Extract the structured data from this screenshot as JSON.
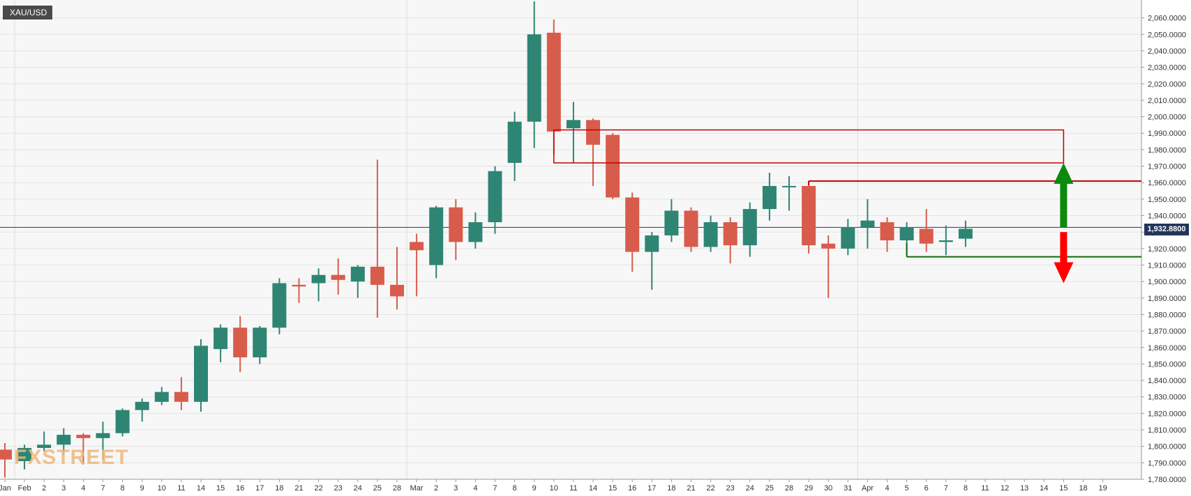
{
  "symbol": "XAU/USD",
  "watermark": "FXSTREET",
  "chart_data": {
    "type": "candlestick",
    "title": "XAU/USD",
    "ylim": [
      1780,
      2070
    ],
    "yticks": [
      1780,
      1790,
      1800,
      1810,
      1820,
      1830,
      1840,
      1850,
      1860,
      1870,
      1880,
      1890,
      1900,
      1910,
      1920,
      1930,
      1940,
      1950,
      1960,
      1970,
      1980,
      1990,
      2000,
      2010,
      2020,
      2030,
      2040,
      2050,
      2060
    ],
    "ytick_labels": [
      "1,780.0000",
      "1,790.0000",
      "1,800.0000",
      "1,810.0000",
      "1,820.0000",
      "1,830.0000",
      "1,840.0000",
      "1,850.0000",
      "1,860.0000",
      "1,870.0000",
      "1,880.0000",
      "1,890.0000",
      "1,900.0000",
      "1,910.0000",
      "1,920.0000",
      "1,930.0000",
      "1,940.0000",
      "1,950.0000",
      "1,960.0000",
      "1,970.0000",
      "1,980.0000",
      "1,990.0000",
      "2,000.0000",
      "2,010.0000",
      "2,020.0000",
      "2,030.0000",
      "2,040.0000",
      "2,050.0000",
      "2,060.0000"
    ],
    "grid": true,
    "candles": [
      {
        "label": "Jan",
        "open": 1798,
        "high": 1802,
        "low": 1781,
        "close": 1792
      },
      {
        "label": "Feb",
        "open": 1791,
        "high": 1801,
        "low": 1786,
        "close": 1799
      },
      {
        "label": "2",
        "open": 1799,
        "high": 1809,
        "low": 1797,
        "close": 1801
      },
      {
        "label": "3",
        "open": 1801,
        "high": 1811,
        "low": 1795,
        "close": 1807
      },
      {
        "label": "4",
        "open": 1807,
        "high": 1808,
        "low": 1789,
        "close": 1805
      },
      {
        "label": "7",
        "open": 1805,
        "high": 1815,
        "low": 1792,
        "close": 1808
      },
      {
        "label": "8",
        "open": 1808,
        "high": 1823,
        "low": 1806,
        "close": 1822
      },
      {
        "label": "9",
        "open": 1822,
        "high": 1829,
        "low": 1815,
        "close": 1827
      },
      {
        "label": "10",
        "open": 1827,
        "high": 1836,
        "low": 1825,
        "close": 1833
      },
      {
        "label": "11",
        "open": 1833,
        "high": 1842,
        "low": 1822,
        "close": 1827
      },
      {
        "label": "14",
        "open": 1827,
        "high": 1865,
        "low": 1821,
        "close": 1861
      },
      {
        "label": "15",
        "open": 1859,
        "high": 1874,
        "low": 1851,
        "close": 1872
      },
      {
        "label": "16",
        "open": 1872,
        "high": 1879,
        "low": 1845,
        "close": 1854
      },
      {
        "label": "17",
        "open": 1854,
        "high": 1873,
        "low": 1850,
        "close": 1872
      },
      {
        "label": "18",
        "open": 1872,
        "high": 1902,
        "low": 1868,
        "close": 1899
      },
      {
        "label": "21",
        "open": 1898,
        "high": 1902,
        "low": 1887,
        "close": 1897
      },
      {
        "label": "22",
        "open": 1899,
        "high": 1908,
        "low": 1888,
        "close": 1904
      },
      {
        "label": "23",
        "open": 1904,
        "high": 1914,
        "low": 1892,
        "close": 1901
      },
      {
        "label": "24",
        "open": 1900,
        "high": 1910,
        "low": 1890,
        "close": 1909
      },
      {
        "label": "25",
        "open": 1909,
        "high": 1974,
        "low": 1878,
        "close": 1898
      },
      {
        "label": "28",
        "open": 1898,
        "high": 1921,
        "low": 1883,
        "close": 1891
      },
      {
        "label": "Mar",
        "open": 1924,
        "high": 1929,
        "low": 1891,
        "close": 1919
      },
      {
        "label": "2",
        "open": 1910,
        "high": 1946,
        "low": 1902,
        "close": 1945
      },
      {
        "label": "3",
        "open": 1945,
        "high": 1950,
        "low": 1913,
        "close": 1924
      },
      {
        "label": "4",
        "open": 1924,
        "high": 1942,
        "low": 1920,
        "close": 1936
      },
      {
        "label": "7",
        "open": 1936,
        "high": 1970,
        "low": 1929,
        "close": 1967
      },
      {
        "label": "8",
        "open": 1972,
        "high": 2003,
        "low": 1961,
        "close": 1997
      },
      {
        "label": "9",
        "open": 1997,
        "high": 2070,
        "low": 1981,
        "close": 2050
      },
      {
        "label": "10",
        "open": 2051,
        "high": 2059,
        "low": 1977,
        "close": 1991
      },
      {
        "label": "11",
        "open": 1993,
        "high": 2009,
        "low": 1972,
        "close": 1998
      },
      {
        "label": "14",
        "open": 1998,
        "high": 1999,
        "low": 1958,
        "close": 1983
      },
      {
        "label": "15",
        "open": 1989,
        "high": 1990,
        "low": 1950,
        "close": 1951
      },
      {
        "label": "16",
        "open": 1951,
        "high": 1954,
        "low": 1906,
        "close": 1918
      },
      {
        "label": "17",
        "open": 1918,
        "high": 1930,
        "low": 1895,
        "close": 1928
      },
      {
        "label": "18",
        "open": 1928,
        "high": 1950,
        "low": 1924,
        "close": 1943
      },
      {
        "label": "21",
        "open": 1943,
        "high": 1945,
        "low": 1918,
        "close": 1921
      },
      {
        "label": "22",
        "open": 1921,
        "high": 1940,
        "low": 1918,
        "close": 1936
      },
      {
        "label": "23",
        "open": 1936,
        "high": 1939,
        "low": 1911,
        "close": 1922
      },
      {
        "label": "24",
        "open": 1922,
        "high": 1948,
        "low": 1915,
        "close": 1944
      },
      {
        "label": "25",
        "open": 1944,
        "high": 1966,
        "low": 1937,
        "close": 1958
      },
      {
        "label": "28",
        "open": 1958,
        "high": 1964,
        "low": 1943,
        "close": 1958
      },
      {
        "label": "29",
        "open": 1958,
        "high": 1961,
        "low": 1917,
        "close": 1922
      },
      {
        "label": "30",
        "open": 1923,
        "high": 1928,
        "low": 1890,
        "close": 1920
      },
      {
        "label": "31",
        "open": 1920,
        "high": 1938,
        "low": 1916,
        "close": 1933
      },
      {
        "label": "Apr",
        "open": 1933,
        "high": 1950,
        "low": 1920,
        "close": 1937
      },
      {
        "label": "4",
        "open": 1936,
        "high": 1939,
        "low": 1918,
        "close": 1925
      },
      {
        "label": "5",
        "open": 1925,
        "high": 1936,
        "low": 1916,
        "close": 1933
      },
      {
        "label": "6",
        "open": 1932,
        "high": 1944,
        "low": 1918,
        "close": 1923
      },
      {
        "label": "7",
        "open": 1924,
        "high": 1934,
        "low": 1916,
        "close": 1925
      },
      {
        "label": "8",
        "open": 1926,
        "high": 1937,
        "low": 1921,
        "close": 1932
      }
    ],
    "future_labels": [
      "11",
      "12",
      "13",
      "14",
      "15",
      "18",
      "19"
    ],
    "current_price": 1932.88,
    "current_price_label": "1,932.8800",
    "colors": {
      "up": "#2e8574",
      "down": "#d85c4c",
      "price_line": "#24355b",
      "resistance": "#c00000",
      "support": "#0b6b0b"
    },
    "annotations": {
      "resistance_zone": {
        "from_index": 28,
        "to_index": 54,
        "low": 1972,
        "high": 1992
      },
      "resistance_line": {
        "from_index": 41,
        "price": 1961
      },
      "support_line": {
        "from_index": 46,
        "price": 1915
      },
      "up_arrow": {
        "index": 54,
        "from": 1933,
        "to": 1972
      },
      "down_arrow": {
        "index": 54,
        "from": 1930,
        "to": 1899
      }
    }
  }
}
